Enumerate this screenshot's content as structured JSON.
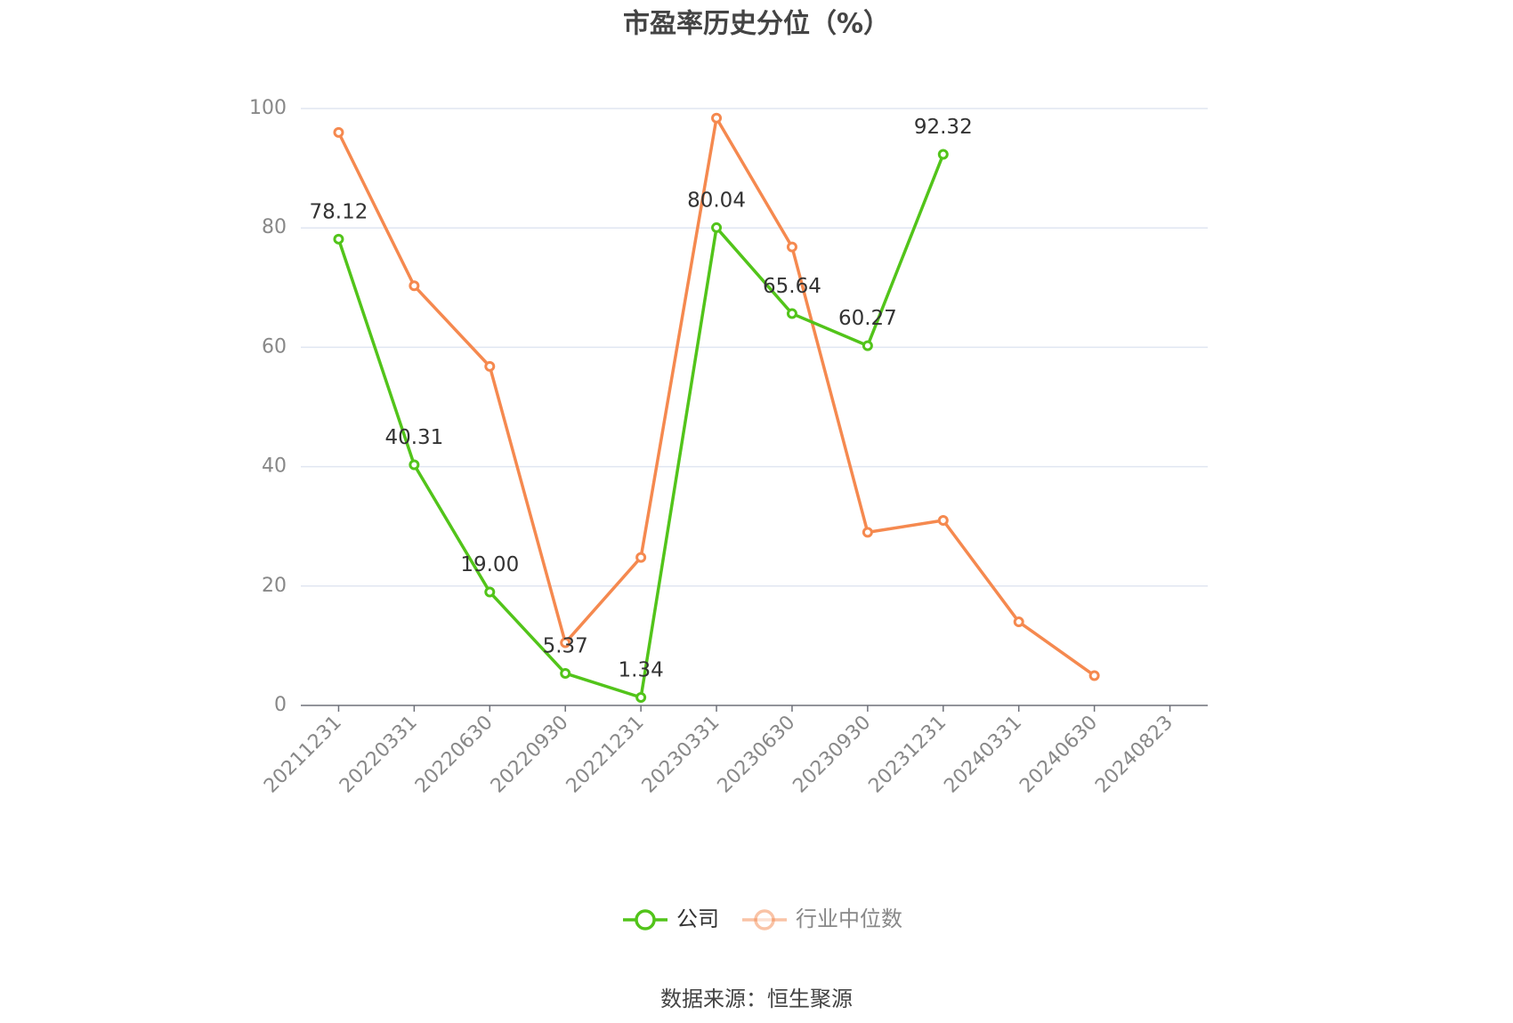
{
  "chart_data": {
    "type": "line",
    "title": "市盈率历史分位（%）",
    "categories": [
      "20211231",
      "20220331",
      "20220630",
      "20220930",
      "20221231",
      "20230331",
      "20230630",
      "20230930",
      "20231231",
      "20240331",
      "20240630",
      "20240823"
    ],
    "series": [
      {
        "name": "公司",
        "color": "#52c41a",
        "values": [
          78.12,
          40.31,
          19.0,
          5.37,
          1.34,
          80.04,
          65.64,
          60.27,
          92.32,
          null,
          null,
          null
        ],
        "value_labels": [
          "78.12",
          "40.31",
          "19.00",
          "5.37",
          "1.34",
          "80.04",
          "65.64",
          "60.27",
          "92.32",
          null,
          null,
          null
        ]
      },
      {
        "name": "行业中位数",
        "color": "#f5894f",
        "values": [
          96.0,
          70.3,
          56.8,
          10.5,
          24.8,
          98.4,
          76.8,
          29.0,
          31.0,
          14.0,
          5.0,
          null
        ]
      }
    ],
    "ylim": [
      0,
      100
    ],
    "yticks": [
      0,
      20,
      40,
      60,
      80,
      100
    ],
    "grid": true,
    "source": "数据来源：恒生聚源"
  }
}
